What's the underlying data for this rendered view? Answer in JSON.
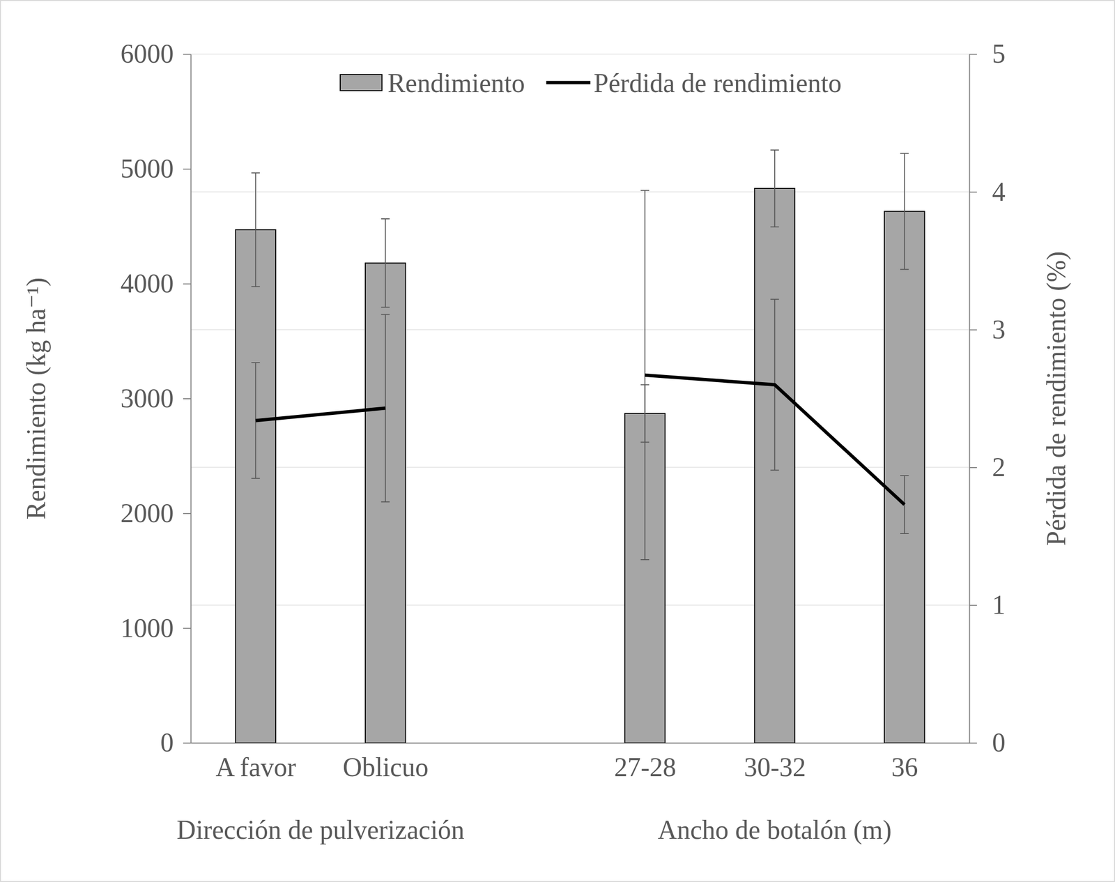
{
  "chart_data": {
    "type": "bar",
    "categories": [
      "A favor",
      "Oblicuo",
      null,
      "27-28",
      "30-32",
      "36"
    ],
    "x_groups": [
      {
        "label": "Dirección de pulverización",
        "categories": [
          "A favor",
          "Oblicuo"
        ]
      },
      {
        "label": "Ancho de botalón (m)",
        "categories": [
          "27-28",
          "30-32",
          "36"
        ]
      }
    ],
    "y_label": "Rendimiento (kg ha⁻¹)",
    "y2_label": "Pérdida de rendimiento (%)",
    "ylim": [
      0,
      6000
    ],
    "yticks": [
      0,
      1000,
      2000,
      3000,
      4000,
      5000,
      6000
    ],
    "y2lim": [
      0,
      5
    ],
    "y2ticks": [
      0,
      1,
      2,
      3,
      4,
      5
    ],
    "grid": true,
    "legend": "top",
    "series": [
      {
        "name": "Rendimiento",
        "type": "bar",
        "color": "#a6a6a6",
        "values": [
          4470,
          4180,
          null,
          2870,
          4830,
          4630
        ],
        "errors": [
          495,
          385,
          null,
          250,
          335,
          505
        ]
      },
      {
        "name": "Pérdida de rendimiento",
        "type": "line",
        "axis": "y2",
        "color": "#000000",
        "values": [
          2.34,
          2.43,
          null,
          2.67,
          2.6,
          1.73
        ],
        "errors": [
          0.42,
          0.68,
          null,
          1.34,
          0.62,
          0.21
        ]
      }
    ]
  }
}
